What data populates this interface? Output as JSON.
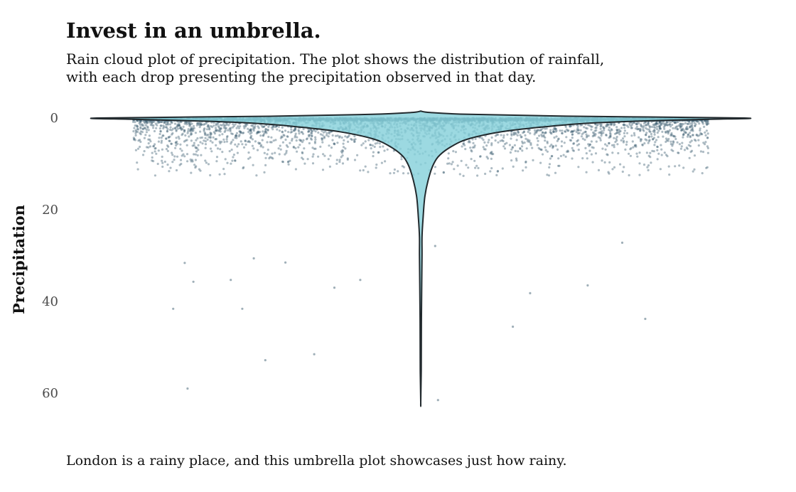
{
  "chart_data": {
    "type": "violin",
    "title": "Invest in an umbrella.",
    "subtitle_lines": [
      "Rain cloud plot of precipitation. The plot shows the distribution of rainfall,",
      "with each drop presenting the precipitation observed in that day."
    ],
    "caption": "London is a rainy place, and this umbrella plot showcases just how rainy.",
    "xlabel": "",
    "ylabel": "Precipitation",
    "y_reversed": true,
    "ylim": [
      0,
      62
    ],
    "yticks": [
      0,
      20,
      40,
      60
    ],
    "grid": false,
    "colors": {
      "violin_fill": "#86d1db",
      "violin_outline": "#222a2e",
      "point": "#3f5f72",
      "text": "#111111",
      "tick_text": "#4a4a4a"
    },
    "violin_profile": [
      {
        "precip": -1.5,
        "half_width": 0.0
      },
      {
        "precip": -1.2,
        "half_width": 0.03
      },
      {
        "precip": -0.8,
        "half_width": 0.15
      },
      {
        "precip": -0.4,
        "half_width": 0.45
      },
      {
        "precip": 0.0,
        "half_width": 1.0
      },
      {
        "precip": 0.3,
        "half_width": 0.88
      },
      {
        "precip": 0.7,
        "half_width": 0.66
      },
      {
        "precip": 1.2,
        "half_width": 0.5
      },
      {
        "precip": 2.0,
        "half_width": 0.37
      },
      {
        "precip": 3.0,
        "half_width": 0.25
      },
      {
        "precip": 4.5,
        "half_width": 0.15
      },
      {
        "precip": 6.0,
        "half_width": 0.1
      },
      {
        "precip": 8.0,
        "half_width": 0.06
      },
      {
        "precip": 10.0,
        "half_width": 0.04
      },
      {
        "precip": 13.0,
        "half_width": 0.025
      },
      {
        "precip": 17.0,
        "half_width": 0.013
      },
      {
        "precip": 22.0,
        "half_width": 0.007
      },
      {
        "precip": 26.0,
        "half_width": 0.004
      },
      {
        "precip": 30.0,
        "half_width": 0.004
      },
      {
        "precip": 36.0,
        "half_width": 0.003
      },
      {
        "precip": 45.0,
        "half_width": 0.002
      },
      {
        "precip": 55.0,
        "half_width": 0.0015
      },
      {
        "precip": 62.0,
        "half_width": 0.0
      }
    ],
    "extreme_days": [
      {
        "x": -0.81,
        "precip": 59.0
      },
      {
        "x": 0.06,
        "precip": 61.5
      },
      {
        "x": -0.54,
        "precip": 52.8
      },
      {
        "x": -0.37,
        "precip": 51.5
      },
      {
        "x": 0.32,
        "precip": 45.5
      },
      {
        "x": 0.78,
        "precip": 43.8
      },
      {
        "x": -0.86,
        "precip": 41.6
      },
      {
        "x": -0.62,
        "precip": 41.6
      },
      {
        "x": 0.38,
        "precip": 38.2
      },
      {
        "x": -0.3,
        "precip": 37.0
      },
      {
        "x": 0.58,
        "precip": 36.5
      },
      {
        "x": -0.79,
        "precip": 35.7
      },
      {
        "x": -0.66,
        "precip": 35.3
      },
      {
        "x": -0.21,
        "precip": 35.3
      },
      {
        "x": -0.82,
        "precip": 31.6
      },
      {
        "x": -0.47,
        "precip": 31.5
      },
      {
        "x": 0.7,
        "precip": 27.2
      },
      {
        "x": 0.05,
        "precip": 27.9
      },
      {
        "x": -0.58,
        "precip": 30.6
      }
    ]
  }
}
